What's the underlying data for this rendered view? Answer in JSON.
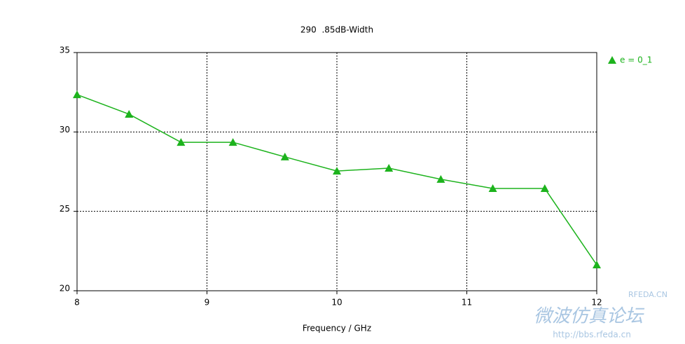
{
  "chart_data": {
    "type": "line",
    "title": "290  .85dB-Width",
    "x_label": "Frequency / GHz",
    "x": [
      8,
      8.4,
      8.8,
      9.2,
      9.6,
      10,
      10.4,
      10.8,
      11.2,
      11.6,
      12
    ],
    "series": [
      {
        "name": "e = 0_1",
        "color": "#1db31d",
        "values": [
          32.35,
          31.12,
          29.35,
          29.35,
          28.43,
          27.54,
          27.72,
          27.02,
          26.44,
          26.44,
          21.63
        ]
      }
    ],
    "xlim": [
      8,
      12
    ],
    "xticks": [
      8,
      9,
      10,
      11,
      12
    ],
    "ylim": [
      20,
      35
    ],
    "yticks": [
      20,
      25,
      30,
      35
    ],
    "grid": true,
    "legend": "right"
  },
  "watermark": {
    "site": "RFEDA.CN",
    "forum": "微波仿真论坛",
    "url": "http://bbs.rfeda.cn"
  }
}
